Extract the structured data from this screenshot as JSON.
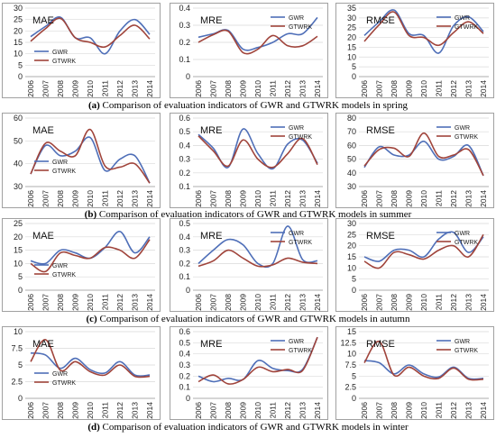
{
  "chart_data": [
    {
      "panel": "spring-mae",
      "type": "line",
      "title": "MAE",
      "categories": [
        "2006",
        "2007",
        "2008",
        "2009",
        "2010",
        "2011",
        "2012",
        "2013",
        "2014"
      ],
      "ylim": [
        0,
        30
      ],
      "yticks": [
        0,
        5,
        10,
        15,
        20,
        25,
        30
      ],
      "series": [
        {
          "name": "GWR",
          "color": "#4F6FB8",
          "values": [
            17.5,
            22,
            26,
            17,
            17,
            10,
            20,
            25,
            18.5
          ]
        },
        {
          "name": "GTWRK",
          "color": "#A0443B",
          "values": [
            15.5,
            21,
            25.5,
            17,
            15,
            13,
            18,
            22.5,
            16.5
          ]
        }
      ]
    },
    {
      "panel": "spring-mre",
      "type": "line",
      "title": "MRE",
      "categories": [
        "2006",
        "2007",
        "2008",
        "2009",
        "2010",
        "2011",
        "2012",
        "2013",
        "2014"
      ],
      "ylim": [
        0,
        0.4
      ],
      "yticks": [
        0,
        0.1,
        0.2,
        0.3,
        0.4
      ],
      "series": [
        {
          "name": "GWR",
          "color": "#4F6FB8",
          "values": [
            0.23,
            0.25,
            0.27,
            0.16,
            0.17,
            0.2,
            0.25,
            0.25,
            0.345
          ]
        },
        {
          "name": "GTWRK",
          "color": "#A0443B",
          "values": [
            0.2,
            0.245,
            0.265,
            0.14,
            0.16,
            0.24,
            0.18,
            0.18,
            0.235
          ]
        }
      ]
    },
    {
      "panel": "spring-rmse",
      "type": "line",
      "title": "RMSE",
      "categories": [
        "2006",
        "2007",
        "2008",
        "2009",
        "2010",
        "2011",
        "2012",
        "2013",
        "2014"
      ],
      "ylim": [
        0,
        35
      ],
      "yticks": [
        0,
        5,
        10,
        15,
        20,
        25,
        30,
        35
      ],
      "series": [
        {
          "name": "GWR",
          "color": "#4F6FB8",
          "values": [
            21,
            28,
            34,
            22,
            21,
            12,
            26,
            30.5,
            23
          ]
        },
        {
          "name": "GTWRK",
          "color": "#A0443B",
          "values": [
            18,
            26.5,
            33,
            21,
            20,
            16,
            22.5,
            28,
            22
          ]
        }
      ]
    },
    {
      "panel": "summer-mae",
      "type": "line",
      "title": "MAE",
      "categories": [
        "2006",
        "2007",
        "2008",
        "2009",
        "2010",
        "2011",
        "2012",
        "2013",
        "2014"
      ],
      "ylim": [
        30,
        60
      ],
      "yticks": [
        30,
        40,
        50,
        60
      ],
      "series": [
        {
          "name": "GWR",
          "color": "#4F6FB8",
          "values": [
            35.5,
            48,
            43.5,
            45.5,
            51.5,
            37,
            42,
            43.5,
            31.5
          ]
        },
        {
          "name": "GTWRK",
          "color": "#A0443B",
          "values": [
            35.5,
            49,
            45.5,
            43.5,
            55,
            39,
            38.5,
            40,
            31.5
          ]
        }
      ]
    },
    {
      "panel": "summer-mre",
      "type": "line",
      "title": "MRE",
      "categories": [
        "2006",
        "2007",
        "2008",
        "2009",
        "2010",
        "2011",
        "2012",
        "2013",
        "2014"
      ],
      "ylim": [
        0.1,
        0.6
      ],
      "yticks": [
        0.1,
        0.2,
        0.3,
        0.4,
        0.5,
        0.6
      ],
      "series": [
        {
          "name": "GWR",
          "color": "#4F6FB8",
          "values": [
            0.48,
            0.38,
            0.24,
            0.52,
            0.34,
            0.23,
            0.41,
            0.44,
            0.27
          ]
        },
        {
          "name": "GTWRK",
          "color": "#A0443B",
          "values": [
            0.47,
            0.36,
            0.25,
            0.44,
            0.3,
            0.24,
            0.34,
            0.45,
            0.26
          ]
        }
      ]
    },
    {
      "panel": "summer-rmse",
      "type": "line",
      "title": "RMSE",
      "categories": [
        "2006",
        "2007",
        "2008",
        "2009",
        "2010",
        "2011",
        "2012",
        "2013",
        "2014"
      ],
      "ylim": [
        30,
        80
      ],
      "yticks": [
        30,
        40,
        50,
        60,
        70,
        80
      ],
      "series": [
        {
          "name": "GWR",
          "color": "#4F6FB8",
          "values": [
            44,
            59,
            53,
            53,
            63,
            50,
            52,
            60,
            38
          ]
        },
        {
          "name": "GTWRK",
          "color": "#A0443B",
          "values": [
            45,
            57,
            58,
            52,
            69,
            52,
            53,
            57,
            38
          ]
        }
      ]
    },
    {
      "panel": "autumn-mae",
      "type": "line",
      "title": "MAE",
      "categories": [
        "2006",
        "2007",
        "2008",
        "2009",
        "2010",
        "2011",
        "2012",
        "2013",
        "2014"
      ],
      "ylim": [
        0,
        25
      ],
      "yticks": [
        0,
        5,
        10,
        15,
        20,
        25
      ],
      "series": [
        {
          "name": "GWR",
          "color": "#4F6FB8",
          "values": [
            11,
            10,
            15,
            14,
            12,
            16,
            22,
            14,
            20
          ]
        },
        {
          "name": "GTWRK",
          "color": "#A0443B",
          "values": [
            10,
            7,
            14,
            13,
            12,
            16,
            15,
            12,
            19
          ]
        }
      ]
    },
    {
      "panel": "autumn-mre",
      "type": "line",
      "title": "MRE",
      "categories": [
        "2006",
        "2007",
        "2008",
        "2009",
        "2010",
        "2011",
        "2012",
        "2013",
        "2014"
      ],
      "ylim": [
        0,
        0.5
      ],
      "yticks": [
        0,
        0.1,
        0.2,
        0.3,
        0.4,
        0.5
      ],
      "series": [
        {
          "name": "GWR",
          "color": "#4F6FB8",
          "values": [
            0.2,
            0.3,
            0.38,
            0.34,
            0.2,
            0.2,
            0.48,
            0.23,
            0.22
          ]
        },
        {
          "name": "GTWRK",
          "color": "#A0443B",
          "values": [
            0.18,
            0.22,
            0.3,
            0.24,
            0.18,
            0.19,
            0.24,
            0.21,
            0.2
          ]
        }
      ]
    },
    {
      "panel": "autumn-rmse",
      "type": "line",
      "title": "RMSE",
      "categories": [
        "2006",
        "2007",
        "2008",
        "2009",
        "2010",
        "2011",
        "2012",
        "2013",
        "2014"
      ],
      "ylim": [
        0,
        30
      ],
      "yticks": [
        0,
        5,
        10,
        15,
        20,
        25,
        30
      ],
      "series": [
        {
          "name": "GWR",
          "color": "#4F6FB8",
          "values": [
            15,
            13,
            18,
            18,
            15,
            23,
            26,
            17,
            24
          ]
        },
        {
          "name": "GTWRK",
          "color": "#A0443B",
          "values": [
            13,
            10,
            17,
            16,
            14,
            18,
            20,
            15,
            25
          ]
        }
      ]
    },
    {
      "panel": "winter-mae",
      "type": "line",
      "title": "MAE",
      "categories": [
        "2006",
        "2007",
        "2008",
        "2009",
        "2010",
        "2011",
        "2012",
        "2013",
        "2014"
      ],
      "ylim": [
        0,
        10
      ],
      "yticks": [
        0,
        2.5,
        5,
        7.5,
        10
      ],
      "series": [
        {
          "name": "GWR",
          "color": "#4F6FB8",
          "values": [
            6.8,
            6.5,
            4.5,
            6,
            4.3,
            3.8,
            5.5,
            3.5,
            3.5
          ]
        },
        {
          "name": "GTWRK",
          "color": "#A0443B",
          "values": [
            5.5,
            8.8,
            4.2,
            5.5,
            4,
            3.5,
            5,
            3.3,
            3.3
          ]
        }
      ]
    },
    {
      "panel": "winter-mre",
      "type": "line",
      "title": "MRE",
      "categories": [
        "2006",
        "2007",
        "2008",
        "2009",
        "2010",
        "2011",
        "2012",
        "2013",
        "2014"
      ],
      "ylim": [
        0,
        0.6
      ],
      "yticks": [
        0,
        0.1,
        0.2,
        0.3,
        0.4,
        0.5,
        0.6
      ],
      "series": [
        {
          "name": "GWR",
          "color": "#4F6FB8",
          "values": [
            0.2,
            0.15,
            0.18,
            0.17,
            0.34,
            0.27,
            0.25,
            0.26,
            0.55
          ]
        },
        {
          "name": "GTWRK",
          "color": "#A0443B",
          "values": [
            0.15,
            0.21,
            0.13,
            0.17,
            0.28,
            0.24,
            0.26,
            0.25,
            0.55
          ]
        }
      ]
    },
    {
      "panel": "winter-rmse",
      "type": "line",
      "title": "RMSE",
      "categories": [
        "2006",
        "2007",
        "2008",
        "2009",
        "2010",
        "2011",
        "2012",
        "2013",
        "2014"
      ],
      "ylim": [
        0,
        15
      ],
      "yticks": [
        0,
        2.5,
        5,
        7.5,
        10,
        12.5,
        15
      ],
      "series": [
        {
          "name": "GWR",
          "color": "#4F6FB8",
          "values": [
            8.5,
            8,
            5.5,
            7.5,
            5.5,
            4.8,
            7,
            4.5,
            4.5
          ]
        },
        {
          "name": "GTWRK",
          "color": "#A0443B",
          "values": [
            8,
            12.8,
            5.2,
            7,
            5,
            4.5,
            6.8,
            4.3,
            4.3
          ]
        }
      ]
    }
  ],
  "captions": [
    {
      "label": "(a)",
      "text": " Comparison of evaluation indicators of GWR and GTWRK models in spring"
    },
    {
      "label": "(b)",
      "text": " Comparison of evaluation indicators of GWR and GTWRK models in summer"
    },
    {
      "label": "(c)",
      "text": " Comparison of evaluation indicators of GWR and GTWRK models in autumn"
    },
    {
      "label": "(d)",
      "text": " Comparison of evaluation indicators of GWR and GTWRK models in winter"
    }
  ]
}
